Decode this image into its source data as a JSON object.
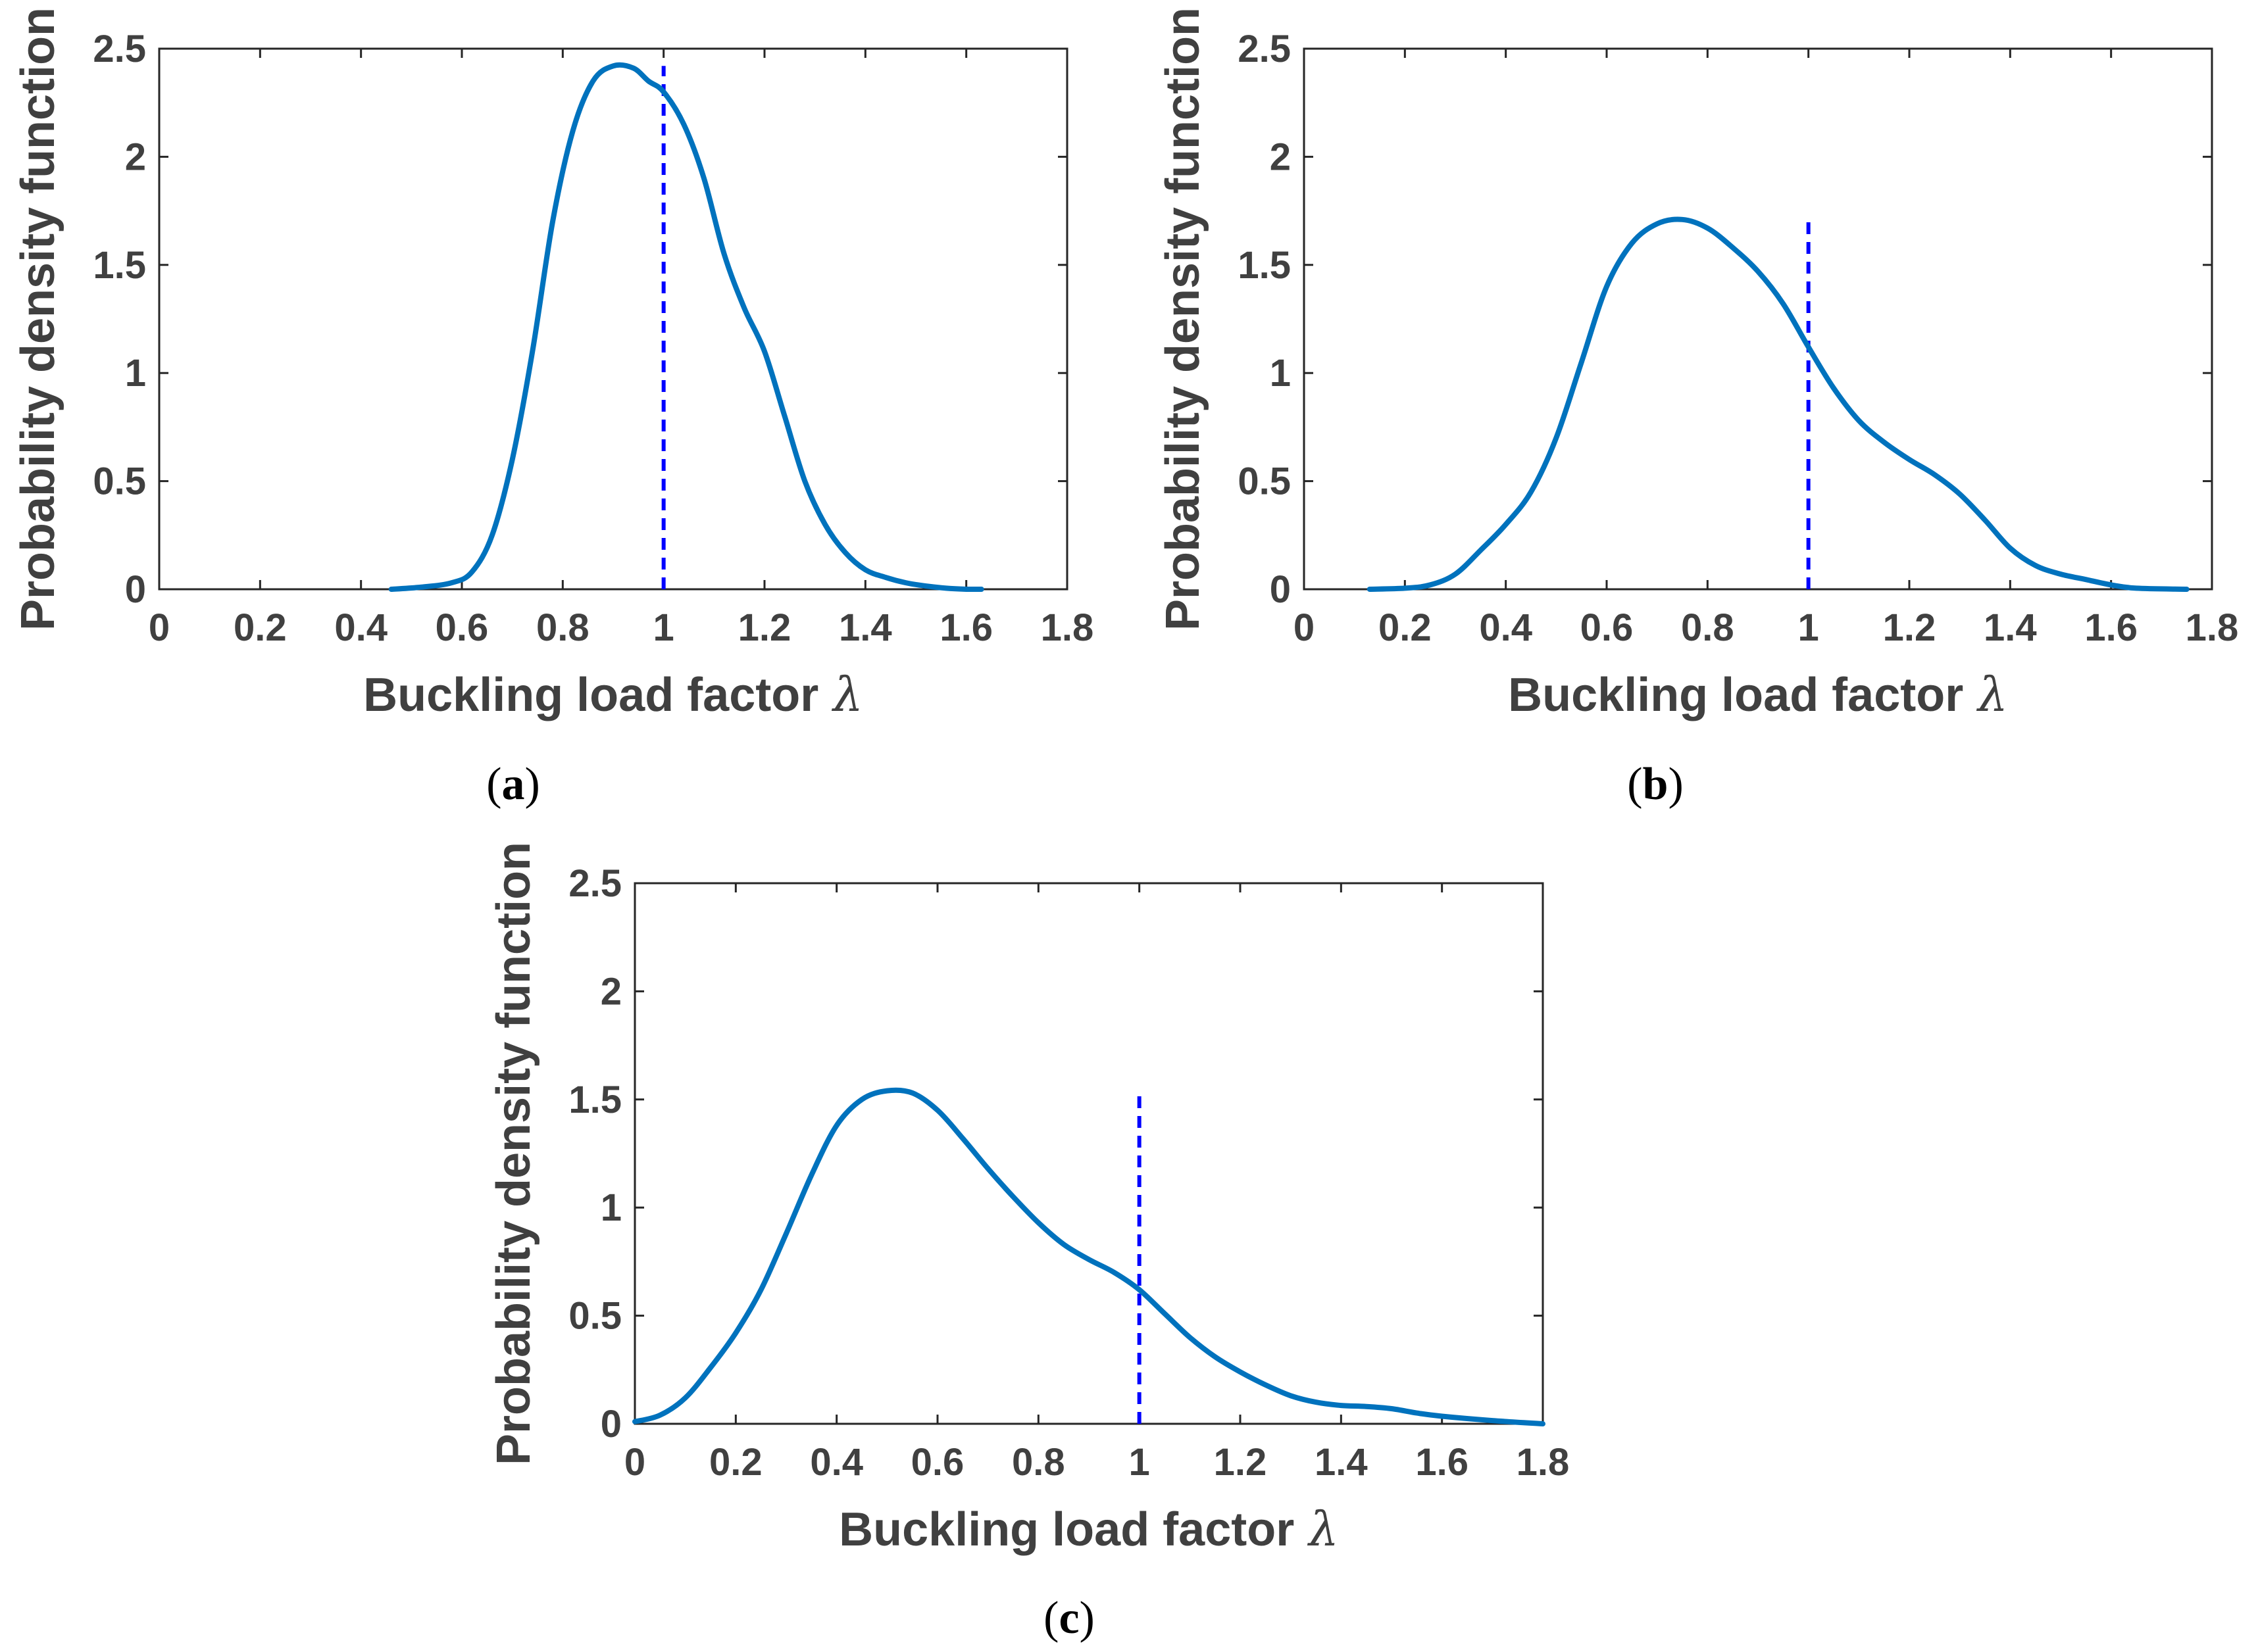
{
  "colors": {
    "curve": "#0072BD",
    "reference": "#0000FF",
    "axis": "#262626",
    "text": "#404040"
  },
  "chart_data": [
    {
      "type": "line",
      "caption": {
        "open": "(",
        "letter": "a",
        "close": ")"
      },
      "xlabel": "Buckling load factor",
      "xlabel_symbol": "λ",
      "ylabel": "Probability density function",
      "xlim": [
        0,
        1.8
      ],
      "ylim": [
        0,
        2.5
      ],
      "xticks": [
        "0",
        "0.2",
        "0.4",
        "0.6",
        "0.8",
        "1",
        "1.2",
        "1.4",
        "1.6",
        "1.8"
      ],
      "yticks": [
        "0",
        "0.5",
        "1",
        "1.5",
        "2",
        "2.5"
      ],
      "reference_line": {
        "x": 1.0,
        "y_top": 2.42
      },
      "series": [
        {
          "name": "PDF",
          "x": [
            0.46,
            0.52,
            0.58,
            0.62,
            0.66,
            0.7,
            0.74,
            0.78,
            0.82,
            0.86,
            0.9,
            0.94,
            0.97,
            1.0,
            1.04,
            1.08,
            1.12,
            1.16,
            1.2,
            1.24,
            1.28,
            1.32,
            1.36,
            1.4,
            1.44,
            1.48,
            1.52,
            1.56,
            1.6,
            1.63
          ],
          "y": [
            0.0,
            0.01,
            0.03,
            0.08,
            0.25,
            0.6,
            1.1,
            1.7,
            2.12,
            2.35,
            2.42,
            2.41,
            2.35,
            2.3,
            2.15,
            1.9,
            1.55,
            1.3,
            1.1,
            0.8,
            0.5,
            0.3,
            0.17,
            0.09,
            0.055,
            0.03,
            0.015,
            0.005,
            0.0,
            0.0
          ]
        }
      ]
    },
    {
      "type": "line",
      "caption": {
        "open": "(",
        "letter": "b",
        "close": ")"
      },
      "xlabel": "Buckling load factor",
      "xlabel_symbol": "λ",
      "ylabel": "Probability density function",
      "xlim": [
        0,
        1.8
      ],
      "ylim": [
        0,
        2.5
      ],
      "xticks": [
        "0",
        "0.2",
        "0.4",
        "0.6",
        "0.8",
        "1",
        "1.2",
        "1.4",
        "1.6",
        "1.8"
      ],
      "yticks": [
        "0",
        "0.5",
        "1",
        "1.5",
        "2",
        "2.5"
      ],
      "reference_line": {
        "x": 1.0,
        "y_top": 1.7
      },
      "series": [
        {
          "name": "PDF",
          "x": [
            0.13,
            0.2,
            0.25,
            0.3,
            0.35,
            0.4,
            0.45,
            0.5,
            0.55,
            0.6,
            0.65,
            0.7,
            0.75,
            0.8,
            0.85,
            0.9,
            0.95,
            1.0,
            1.05,
            1.1,
            1.15,
            1.2,
            1.25,
            1.3,
            1.35,
            1.4,
            1.45,
            1.5,
            1.55,
            1.6,
            1.65,
            1.75
          ],
          "y": [
            0.0,
            0.005,
            0.02,
            0.07,
            0.18,
            0.3,
            0.45,
            0.7,
            1.05,
            1.4,
            1.6,
            1.69,
            1.71,
            1.67,
            1.58,
            1.47,
            1.32,
            1.12,
            0.93,
            0.78,
            0.68,
            0.6,
            0.53,
            0.44,
            0.32,
            0.19,
            0.11,
            0.07,
            0.045,
            0.02,
            0.005,
            0.0
          ]
        }
      ]
    },
    {
      "type": "line",
      "caption": {
        "open": "(",
        "letter": "c",
        "close": ")"
      },
      "xlabel": "Buckling load factor",
      "xlabel_symbol": "λ",
      "ylabel": "Probability density function",
      "xlim": [
        0,
        1.8
      ],
      "ylim": [
        0,
        2.5
      ],
      "xticks": [
        "0",
        "0.2",
        "0.4",
        "0.6",
        "0.8",
        "1",
        "1.2",
        "1.4",
        "1.6",
        "1.8"
      ],
      "yticks": [
        "0",
        "0.5",
        "1",
        "1.5",
        "2",
        "2.5"
      ],
      "reference_line": {
        "x": 1.0,
        "y_top": 1.54
      },
      "series": [
        {
          "name": "PDF",
          "x": [
            0.0,
            0.05,
            0.1,
            0.15,
            0.2,
            0.25,
            0.3,
            0.35,
            0.4,
            0.45,
            0.5,
            0.55,
            0.6,
            0.65,
            0.7,
            0.75,
            0.8,
            0.85,
            0.9,
            0.95,
            1.0,
            1.05,
            1.1,
            1.15,
            1.2,
            1.25,
            1.3,
            1.35,
            1.4,
            1.45,
            1.5,
            1.55,
            1.6,
            1.7,
            1.8
          ],
          "y": [
            0.01,
            0.04,
            0.12,
            0.26,
            0.42,
            0.62,
            0.88,
            1.15,
            1.38,
            1.5,
            1.54,
            1.53,
            1.45,
            1.32,
            1.18,
            1.05,
            0.93,
            0.83,
            0.76,
            0.7,
            0.62,
            0.51,
            0.4,
            0.31,
            0.24,
            0.18,
            0.13,
            0.1,
            0.085,
            0.08,
            0.07,
            0.05,
            0.035,
            0.015,
            0.0
          ]
        }
      ]
    }
  ]
}
